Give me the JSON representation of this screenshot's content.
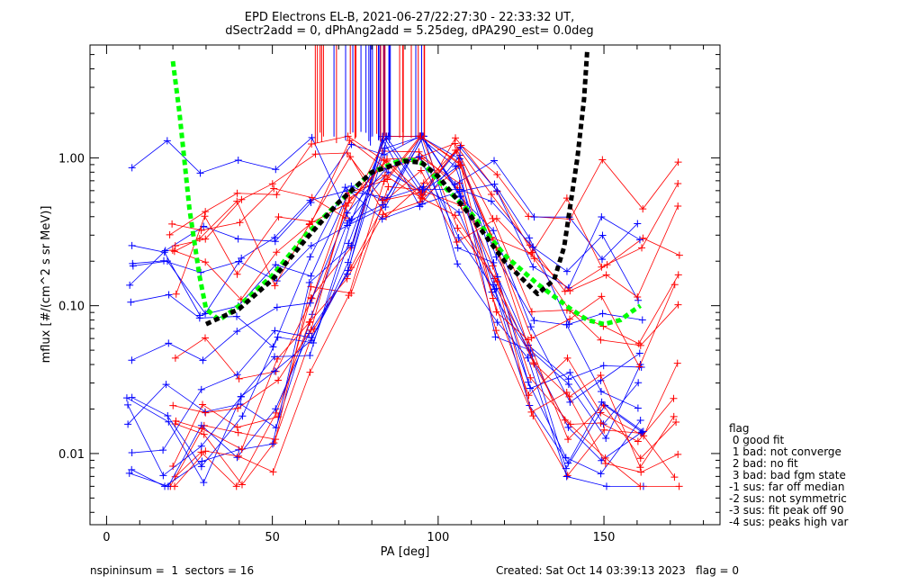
{
  "chart_data": {
    "type": "line",
    "title": "EPD Electrons EL-B, 2021-06-27/22:27:30 - 22:33:32 UT,",
    "subtitle": "dSectr2add = 0, dPhAng2add = 5.25deg, dPA290_est=    0.0deg",
    "xlabel": "PA [deg]",
    "ylabel": "mflux [#/(cm^2 s sr MeV)]",
    "xlim": [
      -5,
      185
    ],
    "ylim": [
      0.0033,
      5.8
    ],
    "yscale": "log",
    "xticks": [
      0,
      50,
      100,
      150
    ],
    "xtick_labels": [
      "0",
      "50",
      "100",
      "150"
    ],
    "yticks": [
      0.01,
      0.1,
      1.0
    ],
    "ytick_labels": [
      "0.01",
      "0.10",
      "1.00"
    ],
    "grid": false,
    "series": [
      {
        "color": "#00ff00",
        "style": "dashed-thick",
        "x": [
          20,
          22,
          25,
          28,
          30,
          34,
          40,
          50,
          60,
          70,
          80,
          88,
          92,
          96,
          100,
          110,
          120,
          130,
          140,
          145,
          150,
          155,
          158,
          161
        ],
        "y": [
          4.5,
          2.0,
          0.45,
          0.16,
          0.095,
          0.08,
          0.1,
          0.16,
          0.3,
          0.5,
          0.8,
          0.95,
          0.97,
          0.9,
          0.7,
          0.42,
          0.22,
          0.14,
          0.095,
          0.08,
          0.075,
          0.08,
          0.09,
          0.1
        ]
      },
      {
        "color": "#000000",
        "style": "dashed-thick",
        "x": [
          30,
          40,
          50,
          60,
          70,
          80,
          90,
          95,
          100,
          110,
          120,
          130,
          135,
          138,
          140,
          142,
          144,
          145
        ],
        "y": [
          0.075,
          0.095,
          0.15,
          0.28,
          0.5,
          0.8,
          0.95,
          0.93,
          0.75,
          0.4,
          0.2,
          0.12,
          0.15,
          0.25,
          0.5,
          1.0,
          2.5,
          5.5
        ]
      }
    ]
  },
  "legend": {
    "title": "flag",
    "entries": [
      "0 good fit",
      "1 bad: not converge",
      "2 bad: no fit",
      "3 bad: bad fgm state",
      "-1 sus: far off median",
      "-2 sus: not symmetric",
      "-3 sus: fit peak off 90",
      "-4 sus: peaks high var"
    ]
  },
  "footer": {
    "left": "nspininsum =  1  sectors = 16",
    "right": "Created: Sat Oct 14 03:39:13 2023   flag = 0"
  },
  "colors": {
    "red": "#ff0000",
    "blue": "#0000ff"
  }
}
